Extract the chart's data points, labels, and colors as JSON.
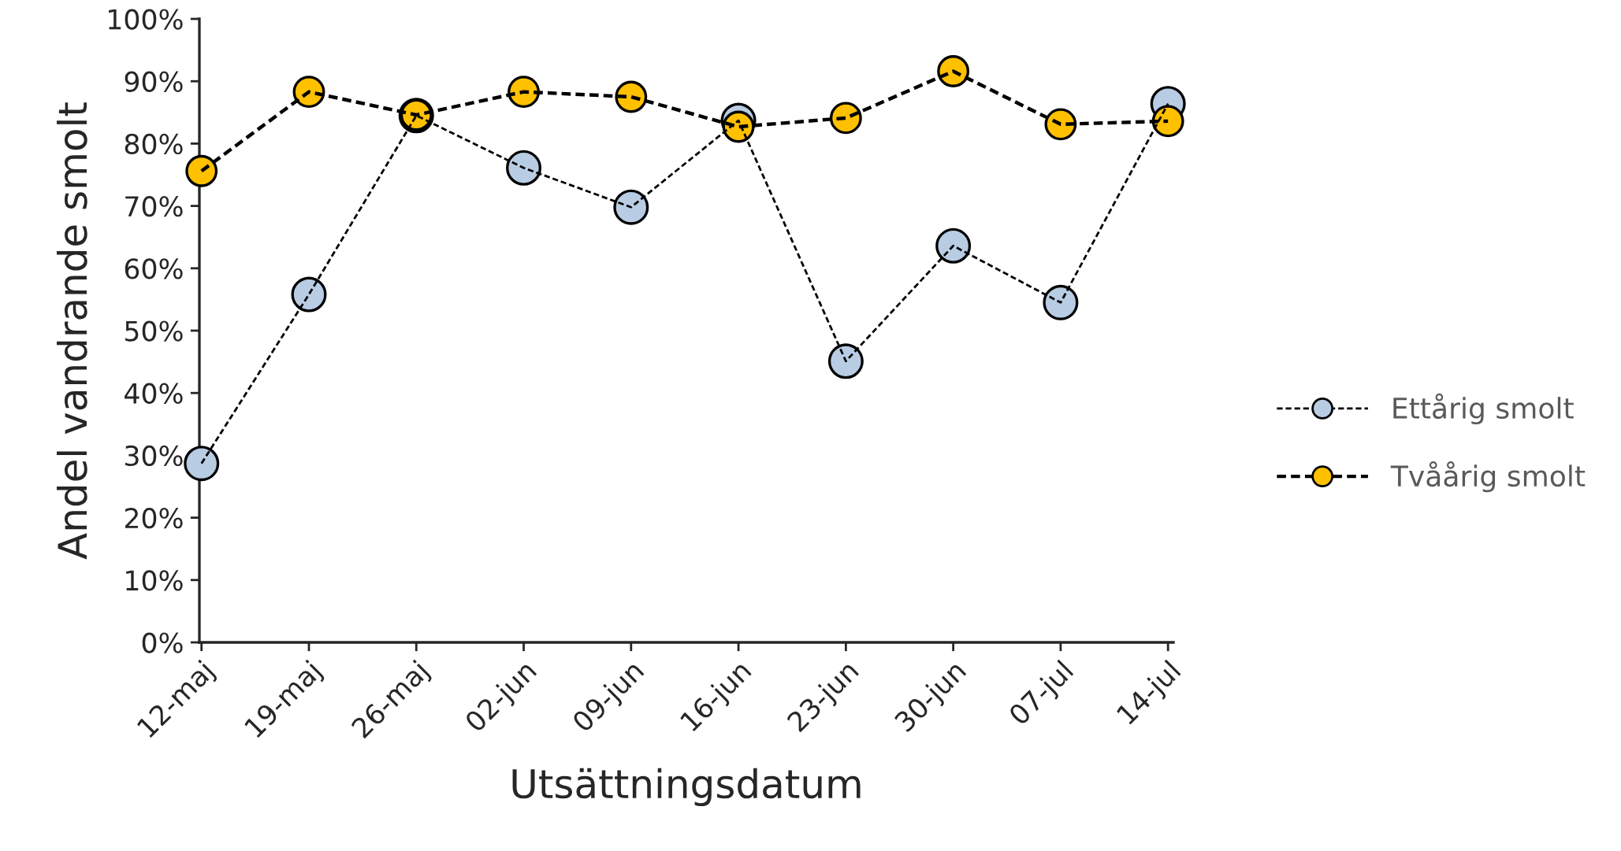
{
  "chart_data": {
    "type": "line",
    "xlabel": "Utsättningsdatum",
    "ylabel": "Andel vandrande smolt",
    "categories": [
      "12-maj",
      "19-maj",
      "26-maj",
      "02-jun",
      "09-jun",
      "16-jun",
      "23-jun",
      "30-jun",
      "07-jul",
      "14-jul"
    ],
    "series": [
      {
        "name": "Ettårig smolt",
        "color": "#b8cce4",
        "values": [
          28.7,
          55.8,
          84.5,
          76.1,
          69.8,
          83.7,
          45.1,
          63.6,
          54.5,
          86.4
        ]
      },
      {
        "name": "Tvåårig smolt",
        "color": "#ffc000",
        "values": [
          75.6,
          88.3,
          84.6,
          88.3,
          87.5,
          82.7,
          84.1,
          91.6,
          83.1,
          83.6
        ]
      }
    ],
    "ylim": [
      0,
      100
    ],
    "yticks": [
      {
        "value": 0,
        "label": "0%"
      },
      {
        "value": 10,
        "label": "10%"
      },
      {
        "value": 20,
        "label": "20%"
      },
      {
        "value": 30,
        "label": "30%"
      },
      {
        "value": 40,
        "label": "40%"
      },
      {
        "value": 50,
        "label": "50%"
      },
      {
        "value": 60,
        "label": "60%"
      },
      {
        "value": 70,
        "label": "70%"
      },
      {
        "value": 80,
        "label": "80%"
      },
      {
        "value": 90,
        "label": "90%"
      },
      {
        "value": 100,
        "label": "100%"
      }
    ],
    "grid": false,
    "legend": "right",
    "marker": "circle",
    "line_style": "dashed"
  }
}
